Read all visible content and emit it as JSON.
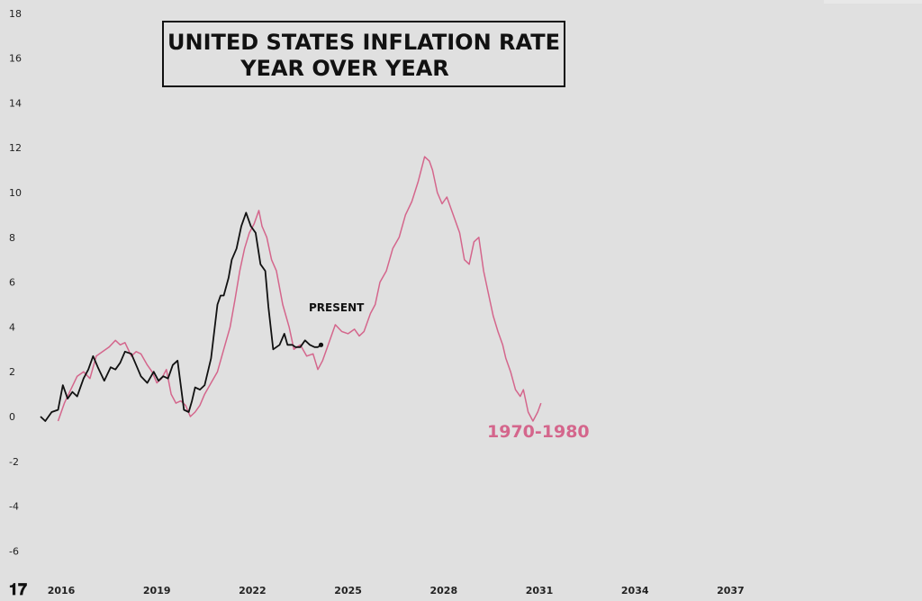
{
  "chart_data": {
    "type": "line",
    "title": "UNITED STATES INFLATION RATE YEAR OVER YEAR",
    "title_lines": [
      "UNITED STATES INFLATION RATE",
      "YEAR OVER YEAR"
    ],
    "xlabel": "",
    "ylabel": "",
    "xlim": [
      2015.35,
      2039.05
    ],
    "ylim": [
      -6.7,
      18.0
    ],
    "yticks": [
      -6,
      -4,
      -2,
      0,
      2,
      4,
      6,
      8,
      10,
      12,
      14,
      16,
      18
    ],
    "xticks": [
      2016,
      2019,
      2022,
      2025,
      2028,
      2031,
      2034,
      2037
    ],
    "grid": false,
    "legend": "none",
    "annotations": [
      {
        "text": "PRESENT",
        "x": 2023.6,
        "y": 4.8,
        "color": "#111111"
      },
      {
        "text": "1970-1980",
        "x": 2029.05,
        "y": -0.7,
        "color": "#d4668c"
      }
    ],
    "series": [
      {
        "name": "",
        "color": "#d4668c",
        "x": [
          2015.9,
          2016.1,
          2016.3,
          2016.5,
          2016.7,
          2016.9,
          2017.1,
          2017.3,
          2017.5,
          2017.7,
          2017.85,
          2018.0,
          2018.2,
          2018.35,
          2018.5,
          2018.7,
          2018.85,
          2019.0,
          2019.15,
          2019.3,
          2019.45,
          2019.6,
          2019.75,
          2019.9,
          2020.05,
          2020.2,
          2020.35,
          2020.5,
          2020.7,
          2020.9,
          2021.1,
          2021.3,
          2021.45,
          2021.6,
          2021.75,
          2021.9,
          2022.05,
          2022.2,
          2022.3,
          2022.45,
          2022.6,
          2022.75,
          2022.95,
          2023.15,
          2023.3,
          2023.5,
          2023.7,
          2023.9,
          2024.05,
          2024.2,
          2024.4,
          2024.6,
          2024.8,
          2025.0,
          2025.2,
          2025.35,
          2025.5,
          2025.7,
          2025.85,
          2026.0,
          2026.2,
          2026.4,
          2026.6,
          2026.8,
          2027.0,
          2027.2,
          2027.4,
          2027.55,
          2027.65,
          2027.8,
          2027.95,
          2028.1,
          2028.3,
          2028.5,
          2028.65,
          2028.8,
          2028.95,
          2029.1,
          2029.25,
          2029.4,
          2029.55,
          2029.7,
          2029.85,
          2029.95,
          2030.1,
          2030.25,
          2030.4,
          2030.5,
          2030.65,
          2030.8,
          2030.95,
          2031.05
        ],
        "values": [
          -0.2,
          0.6,
          1.2,
          1.8,
          2.0,
          1.7,
          2.7,
          2.9,
          3.1,
          3.4,
          3.2,
          3.3,
          2.7,
          2.9,
          2.8,
          2.3,
          2.0,
          1.5,
          1.7,
          2.1,
          1.0,
          0.6,
          0.7,
          0.5,
          0.0,
          0.2,
          0.5,
          1.0,
          1.5,
          2.0,
          3.0,
          4.0,
          5.2,
          6.5,
          7.5,
          8.2,
          8.6,
          9.2,
          8.5,
          8.0,
          7.0,
          6.5,
          5.0,
          4.0,
          3.0,
          3.2,
          2.7,
          2.8,
          2.1,
          2.5,
          3.3,
          4.1,
          3.8,
          3.7,
          3.9,
          3.6,
          3.8,
          4.6,
          5.0,
          6.0,
          6.5,
          7.5,
          8.0,
          9.0,
          9.6,
          10.5,
          11.6,
          11.4,
          11.0,
          10.0,
          9.5,
          9.8,
          9.0,
          8.2,
          7.0,
          6.8,
          7.8,
          8.0,
          6.5,
          5.5,
          4.5,
          3.8,
          3.2,
          2.6,
          2.0,
          1.2,
          0.9,
          1.2,
          0.2,
          -0.2,
          0.2,
          0.6
        ]
      },
      {
        "name": "",
        "color": "#111111",
        "x": [
          2015.35,
          2015.5,
          2015.7,
          2015.9,
          2016.05,
          2016.2,
          2016.35,
          2016.5,
          2016.7,
          2016.85,
          2017.0,
          2017.15,
          2017.35,
          2017.55,
          2017.7,
          2017.85,
          2018.0,
          2018.2,
          2018.35,
          2018.5,
          2018.7,
          2018.9,
          2019.05,
          2019.2,
          2019.35,
          2019.5,
          2019.65,
          2019.85,
          2020.0,
          2020.1,
          2020.2,
          2020.35,
          2020.5,
          2020.7,
          2020.9,
          2021.0,
          2021.1,
          2021.25,
          2021.35,
          2021.5,
          2021.65,
          2021.8,
          2021.95,
          2022.1,
          2022.25,
          2022.4,
          2022.5,
          2022.65,
          2022.85,
          2023.0,
          2023.1,
          2023.25,
          2023.35,
          2023.5,
          2023.65,
          2023.8,
          2023.95,
          2024.05,
          2024.15
        ],
        "values": [
          0.0,
          -0.2,
          0.2,
          0.3,
          1.4,
          0.8,
          1.1,
          0.9,
          1.7,
          2.1,
          2.7,
          2.2,
          1.6,
          2.2,
          2.1,
          2.4,
          2.9,
          2.8,
          2.3,
          1.8,
          1.5,
          2.0,
          1.6,
          1.8,
          1.7,
          2.3,
          2.5,
          0.3,
          0.2,
          0.7,
          1.3,
          1.2,
          1.4,
          2.6,
          5.0,
          5.4,
          5.4,
          6.2,
          7.0,
          7.5,
          8.5,
          9.1,
          8.5,
          8.2,
          6.8,
          6.5,
          4.9,
          3.0,
          3.2,
          3.7,
          3.2,
          3.2,
          3.1,
          3.1,
          3.4,
          3.2,
          3.1,
          3.1,
          3.2
        ]
      }
    ]
  }
}
